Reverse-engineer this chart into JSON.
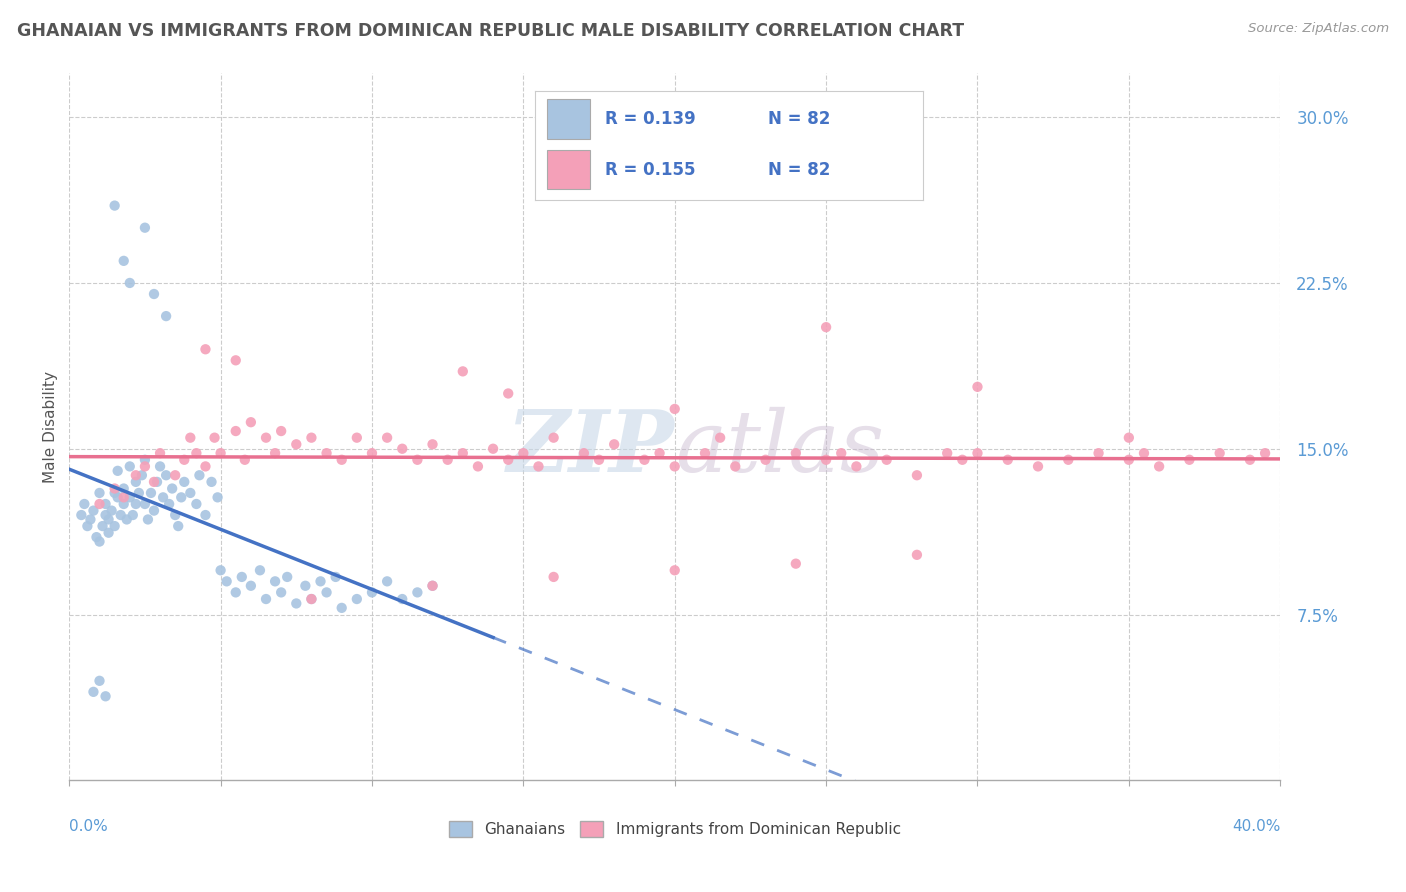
{
  "title": "GHANAIAN VS IMMIGRANTS FROM DOMINICAN REPUBLIC MALE DISABILITY CORRELATION CHART",
  "source": "Source: ZipAtlas.com",
  "ylabel": "Male Disability",
  "x_min": 0.0,
  "x_max": 0.4,
  "y_min": 0.0,
  "y_max": 0.32,
  "y_ticks": [
    0.075,
    0.15,
    0.225,
    0.3
  ],
  "y_tick_labels": [
    "7.5%",
    "15.0%",
    "22.5%",
    "30.0%"
  ],
  "legend_r1": "R = 0.139",
  "legend_n1": "N = 82",
  "legend_r2": "R = 0.155",
  "legend_n2": "N = 82",
  "color_ghanaian": "#a8c4e0",
  "color_dominican": "#f4a0b8",
  "color_line_ghanaian": "#4472c4",
  "color_line_dominican": "#e87090",
  "color_dashed_blue": "#a8c4e0",
  "watermark_text": "ZIP atlas",
  "watermark_color": "#c8d8e8",
  "ghanaian_x": [
    0.004,
    0.005,
    0.006,
    0.007,
    0.008,
    0.009,
    0.01,
    0.01,
    0.011,
    0.012,
    0.012,
    0.013,
    0.013,
    0.014,
    0.015,
    0.015,
    0.016,
    0.016,
    0.017,
    0.018,
    0.018,
    0.019,
    0.02,
    0.02,
    0.021,
    0.022,
    0.022,
    0.023,
    0.024,
    0.025,
    0.025,
    0.026,
    0.027,
    0.028,
    0.029,
    0.03,
    0.031,
    0.032,
    0.033,
    0.034,
    0.035,
    0.036,
    0.037,
    0.038,
    0.04,
    0.042,
    0.043,
    0.045,
    0.047,
    0.049,
    0.05,
    0.052,
    0.055,
    0.057,
    0.06,
    0.063,
    0.065,
    0.068,
    0.07,
    0.072,
    0.075,
    0.078,
    0.08,
    0.083,
    0.085,
    0.088,
    0.09,
    0.095,
    0.1,
    0.105,
    0.11,
    0.115,
    0.12,
    0.025,
    0.028,
    0.032,
    0.015,
    0.018,
    0.02,
    0.008,
    0.01,
    0.012
  ],
  "ghanaian_y": [
    0.12,
    0.125,
    0.115,
    0.118,
    0.122,
    0.11,
    0.108,
    0.13,
    0.115,
    0.12,
    0.125,
    0.112,
    0.118,
    0.122,
    0.13,
    0.115,
    0.128,
    0.14,
    0.12,
    0.125,
    0.132,
    0.118,
    0.128,
    0.142,
    0.12,
    0.125,
    0.135,
    0.13,
    0.138,
    0.125,
    0.145,
    0.118,
    0.13,
    0.122,
    0.135,
    0.142,
    0.128,
    0.138,
    0.125,
    0.132,
    0.12,
    0.115,
    0.128,
    0.135,
    0.13,
    0.125,
    0.138,
    0.12,
    0.135,
    0.128,
    0.095,
    0.09,
    0.085,
    0.092,
    0.088,
    0.095,
    0.082,
    0.09,
    0.085,
    0.092,
    0.08,
    0.088,
    0.082,
    0.09,
    0.085,
    0.092,
    0.078,
    0.082,
    0.085,
    0.09,
    0.082,
    0.085,
    0.088,
    0.25,
    0.22,
    0.21,
    0.26,
    0.235,
    0.225,
    0.04,
    0.045,
    0.038
  ],
  "dominican_x": [
    0.01,
    0.015,
    0.018,
    0.022,
    0.025,
    0.028,
    0.03,
    0.035,
    0.038,
    0.04,
    0.042,
    0.045,
    0.048,
    0.05,
    0.055,
    0.058,
    0.06,
    0.065,
    0.068,
    0.07,
    0.075,
    0.08,
    0.085,
    0.09,
    0.095,
    0.1,
    0.105,
    0.11,
    0.115,
    0.12,
    0.125,
    0.13,
    0.135,
    0.14,
    0.145,
    0.15,
    0.155,
    0.16,
    0.17,
    0.175,
    0.18,
    0.19,
    0.195,
    0.2,
    0.21,
    0.215,
    0.22,
    0.23,
    0.24,
    0.25,
    0.255,
    0.26,
    0.27,
    0.28,
    0.29,
    0.295,
    0.3,
    0.31,
    0.32,
    0.33,
    0.34,
    0.35,
    0.355,
    0.36,
    0.37,
    0.38,
    0.39,
    0.395,
    0.045,
    0.055,
    0.13,
    0.145,
    0.2,
    0.25,
    0.3,
    0.35,
    0.08,
    0.12,
    0.16,
    0.2,
    0.24,
    0.28
  ],
  "dominican_y": [
    0.125,
    0.132,
    0.128,
    0.138,
    0.142,
    0.135,
    0.148,
    0.138,
    0.145,
    0.155,
    0.148,
    0.142,
    0.155,
    0.148,
    0.158,
    0.145,
    0.162,
    0.155,
    0.148,
    0.158,
    0.152,
    0.155,
    0.148,
    0.145,
    0.155,
    0.148,
    0.155,
    0.15,
    0.145,
    0.152,
    0.145,
    0.148,
    0.142,
    0.15,
    0.145,
    0.148,
    0.142,
    0.155,
    0.148,
    0.145,
    0.152,
    0.145,
    0.148,
    0.142,
    0.148,
    0.155,
    0.142,
    0.145,
    0.148,
    0.145,
    0.148,
    0.142,
    0.145,
    0.138,
    0.148,
    0.145,
    0.148,
    0.145,
    0.142,
    0.145,
    0.148,
    0.145,
    0.148,
    0.142,
    0.145,
    0.148,
    0.145,
    0.148,
    0.195,
    0.19,
    0.185,
    0.175,
    0.168,
    0.205,
    0.178,
    0.155,
    0.082,
    0.088,
    0.092,
    0.095,
    0.098,
    0.102
  ]
}
